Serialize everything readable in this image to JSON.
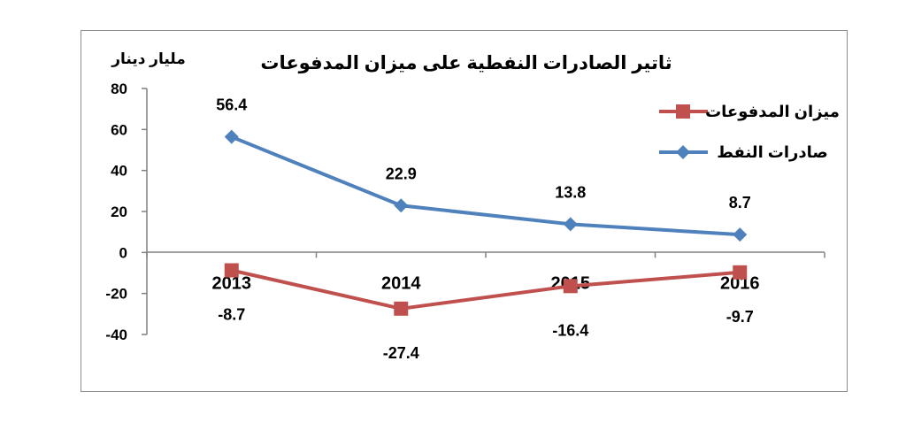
{
  "chart_data": {
    "type": "line",
    "title": "ثاتير الصادرات النفطية على ميزان المدفوعات",
    "ylabel": "مليار دينار",
    "xlabel": "",
    "categories": [
      "2013",
      "2014",
      "2015",
      "2016"
    ],
    "ylim": [
      -40,
      80
    ],
    "yticks": [
      80,
      60,
      40,
      20,
      0,
      -20,
      -40
    ],
    "grid": false,
    "legend_position": "top-right",
    "series": [
      {
        "name": "ميزان المدفوعات",
        "values": [
          -8.7,
          -27.4,
          -16.4,
          -9.7
        ],
        "labels": [
          "-8.7",
          "-27.4",
          "-16.4",
          "-9.7"
        ],
        "color": "#c0504d",
        "marker": "square"
      },
      {
        "name": "صادرات النفط",
        "values": [
          56.4,
          22.9,
          13.8,
          8.7
        ],
        "labels": [
          "56.4",
          "22.9",
          "13.8",
          "8.7"
        ],
        "color": "#4f81bd",
        "marker": "diamond"
      }
    ]
  }
}
